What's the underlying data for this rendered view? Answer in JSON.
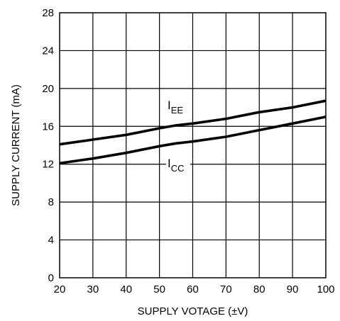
{
  "chart_data": {
    "type": "line",
    "title": "",
    "xlabel": "SUPPLY VOTAGE (±V)",
    "ylabel": "SUPPLY CURRENT (mA)",
    "xlim": [
      20,
      100
    ],
    "ylim": [
      0,
      28
    ],
    "xticks": [
      20,
      30,
      40,
      50,
      60,
      70,
      80,
      90,
      100
    ],
    "yticks": [
      0,
      4,
      8,
      12,
      16,
      20,
      24,
      28
    ],
    "grid": true,
    "x": [
      20,
      30,
      40,
      50,
      55,
      60,
      70,
      80,
      90,
      100
    ],
    "series": [
      {
        "name": "IEE",
        "label_main": "I",
        "label_sub": "EE",
        "values": [
          14.1,
          14.6,
          15.1,
          15.8,
          16.1,
          16.3,
          16.8,
          17.5,
          18.0,
          18.7
        ]
      },
      {
        "name": "ICC",
        "label_main": "I",
        "label_sub": "CC",
        "values": [
          12.1,
          12.6,
          13.2,
          13.9,
          14.2,
          14.4,
          14.9,
          15.6,
          16.3,
          17.0
        ]
      }
    ]
  },
  "colors": {
    "line": "#000000",
    "grid": "#000000",
    "background": "#ffffff"
  }
}
